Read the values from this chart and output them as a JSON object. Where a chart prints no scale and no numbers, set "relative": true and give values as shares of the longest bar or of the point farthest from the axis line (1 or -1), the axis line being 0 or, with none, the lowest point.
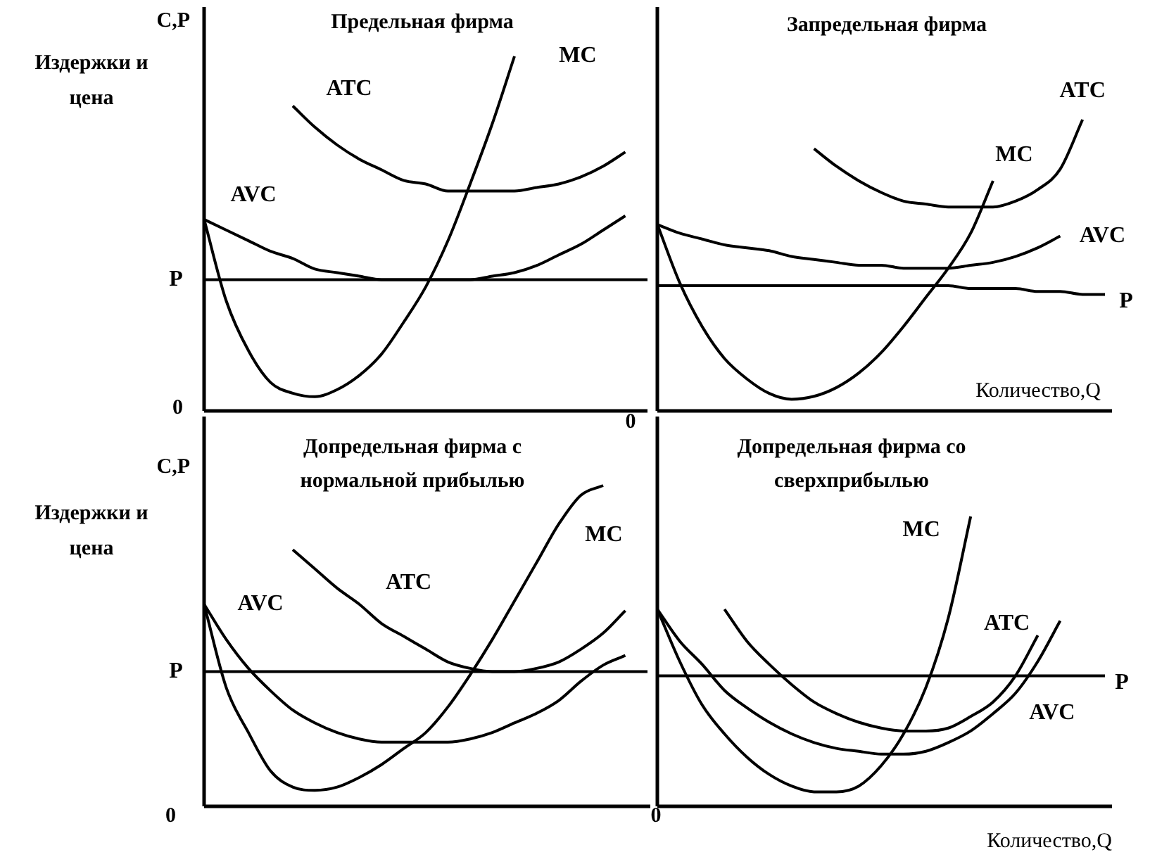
{
  "chart_data": [
    {
      "type": "line",
      "relative": true,
      "title": "Предельная фирма",
      "ylabel": "Издержки и цена",
      "annotations": [
        "C,P",
        "0"
      ],
      "categories": [
        null,
        null,
        null,
        null,
        null,
        null,
        null,
        null,
        null,
        null,
        null,
        null,
        null,
        null,
        null,
        null,
        null,
        null,
        null,
        null,
        null
      ],
      "series": [
        {
          "name": "MC",
          "color": "#000000",
          "values": [
            0.54,
            0.31,
            0.17,
            0.08,
            0.05,
            0.04,
            0.06,
            0.1,
            0.16,
            0.25,
            0.35,
            0.48,
            0.64,
            0.81,
            1,
            null,
            null,
            null,
            null,
            null,
            null
          ]
        },
        {
          "name": "ATC",
          "color": "#000000",
          "values": [
            null,
            null,
            null,
            null,
            0.86,
            0.8,
            0.75,
            0.71,
            0.68,
            0.65,
            0.64,
            0.62,
            0.62,
            0.62,
            0.62,
            0.63,
            0.64,
            0.66,
            0.69,
            0.73,
            null
          ]
        },
        {
          "name": "AVC",
          "color": "#000000",
          "values": [
            0.54,
            0.51,
            0.48,
            0.45,
            0.43,
            0.4,
            0.39,
            0.38,
            0.37,
            0.37,
            0.37,
            0.37,
            0.37,
            0.38,
            0.39,
            0.41,
            0.44,
            0.47,
            0.51,
            0.55,
            null
          ]
        },
        {
          "name": "P",
          "color": "#000000",
          "values": [
            0.37,
            0.37,
            0.37,
            0.37,
            0.37,
            0.37,
            0.37,
            0.37,
            0.37,
            0.37,
            0.37,
            0.37,
            0.37,
            0.37,
            0.37,
            0.37,
            0.37,
            0.37,
            0.37,
            0.37,
            0.37
          ]
        }
      ]
    },
    {
      "type": "line",
      "relative": true,
      "title": "Запредельная фирма",
      "xlabel": "Количество,Q",
      "annotations": [
        "0"
      ],
      "categories": [
        null,
        null,
        null,
        null,
        null,
        null,
        null,
        null,
        null,
        null,
        null,
        null,
        null,
        null,
        null,
        null,
        null,
        null,
        null,
        null,
        null
      ],
      "series": [
        {
          "name": "MC",
          "color": "#000000",
          "values": [
            0.64,
            0.44,
            0.29,
            0.18,
            0.11,
            0.06,
            0.04,
            0.05,
            0.08,
            0.13,
            0.2,
            0.29,
            0.39,
            0.49,
            0.61,
            0.79,
            null,
            null,
            null,
            null,
            null
          ]
        },
        {
          "name": "ATC",
          "color": "#000000",
          "values": [
            null,
            null,
            null,
            null,
            null,
            null,
            null,
            0.9,
            0.84,
            0.79,
            0.75,
            0.72,
            0.71,
            0.7,
            0.7,
            0.7,
            0.72,
            0.76,
            0.83,
            1,
            null
          ]
        },
        {
          "name": "AVC",
          "color": "#000000",
          "values": [
            0.64,
            0.61,
            0.59,
            0.57,
            0.56,
            0.55,
            0.53,
            0.52,
            0.51,
            0.5,
            0.5,
            0.49,
            0.49,
            0.49,
            0.5,
            0.51,
            0.53,
            0.56,
            0.6,
            null,
            null
          ]
        },
        {
          "name": "P",
          "color": "#000000",
          "values": [
            0.43,
            0.43,
            0.43,
            0.43,
            0.43,
            0.43,
            0.43,
            0.43,
            0.43,
            0.43,
            0.43,
            0.43,
            0.43,
            0.43,
            0.42,
            0.42,
            0.42,
            0.41,
            0.41,
            0.4,
            0.4
          ]
        }
      ]
    },
    {
      "type": "line",
      "relative": true,
      "title": "Допредельная фирма с нормальной прибылью",
      "ylabel": "Издержки и цена",
      "annotations": [
        "C,P",
        "0"
      ],
      "categories": [
        null,
        null,
        null,
        null,
        null,
        null,
        null,
        null,
        null,
        null,
        null,
        null,
        null,
        null,
        null,
        null,
        null,
        null,
        null,
        null,
        null
      ],
      "series": [
        {
          "name": "MC",
          "color": "#000000",
          "values": [
            0.63,
            0.37,
            0.23,
            0.11,
            0.06,
            0.05,
            0.06,
            0.09,
            0.13,
            0.18,
            0.23,
            0.31,
            0.41,
            0.52,
            0.64,
            0.76,
            0.88,
            0.97,
            1,
            null,
            null
          ]
        },
        {
          "name": "ATC",
          "color": "#000000",
          "values": [
            null,
            null,
            null,
            null,
            0.8,
            0.74,
            0.68,
            0.63,
            0.57,
            0.53,
            0.49,
            0.45,
            0.43,
            0.42,
            0.42,
            0.43,
            0.45,
            0.49,
            0.54,
            0.61,
            null
          ]
        },
        {
          "name": "AVC",
          "color": "#000000",
          "values": [
            0.63,
            0.52,
            0.43,
            0.36,
            0.3,
            0.26,
            0.23,
            0.21,
            0.2,
            0.2,
            0.2,
            0.2,
            0.21,
            0.23,
            0.26,
            0.29,
            0.33,
            0.39,
            0.44,
            0.47,
            null
          ]
        },
        {
          "name": "P",
          "color": "#000000",
          "values": [
            0.42,
            0.42,
            0.42,
            0.42,
            0.42,
            0.42,
            0.42,
            0.42,
            0.42,
            0.42,
            0.42,
            0.42,
            0.42,
            0.42,
            0.42,
            0.42,
            0.42,
            0.42,
            0.42,
            0.42,
            0.42
          ]
        }
      ]
    },
    {
      "type": "line",
      "relative": true,
      "title": "Допредельная фирма со сверхприбылью",
      "xlabel": "Количество,Q",
      "annotations": [
        "0"
      ],
      "categories": [
        null,
        null,
        null,
        null,
        null,
        null,
        null,
        null,
        null,
        null,
        null,
        null,
        null,
        null,
        null,
        null,
        null,
        null,
        null,
        null,
        null
      ],
      "series": [
        {
          "name": "MC",
          "color": "#000000",
          "values": [
            0.68,
            0.5,
            0.35,
            0.25,
            0.17,
            0.11,
            0.07,
            0.05,
            0.05,
            0.07,
            0.14,
            0.25,
            0.41,
            0.65,
            1,
            null,
            null,
            null,
            null,
            null,
            null
          ]
        },
        {
          "name": "ATC",
          "color": "#000000",
          "values": [
            null,
            null,
            null,
            0.68,
            0.57,
            0.49,
            0.42,
            0.36,
            0.32,
            0.29,
            0.27,
            0.26,
            0.26,
            0.27,
            0.31,
            0.36,
            0.45,
            0.59,
            null,
            null,
            null
          ]
        },
        {
          "name": "AVC",
          "color": "#000000",
          "values": [
            0.68,
            0.57,
            0.49,
            0.4,
            0.34,
            0.29,
            0.25,
            0.22,
            0.2,
            0.19,
            0.18,
            0.18,
            0.19,
            0.22,
            0.26,
            0.32,
            0.39,
            0.5,
            0.64,
            null,
            null
          ]
        },
        {
          "name": "P",
          "color": "#000000",
          "values": [
            0.45,
            0.45,
            0.45,
            0.45,
            0.45,
            0.45,
            0.45,
            0.45,
            0.45,
            0.45,
            0.45,
            0.45,
            0.45,
            0.45,
            0.45,
            0.45,
            0.45,
            0.45,
            0.45,
            0.45,
            0.45
          ]
        }
      ]
    }
  ]
}
